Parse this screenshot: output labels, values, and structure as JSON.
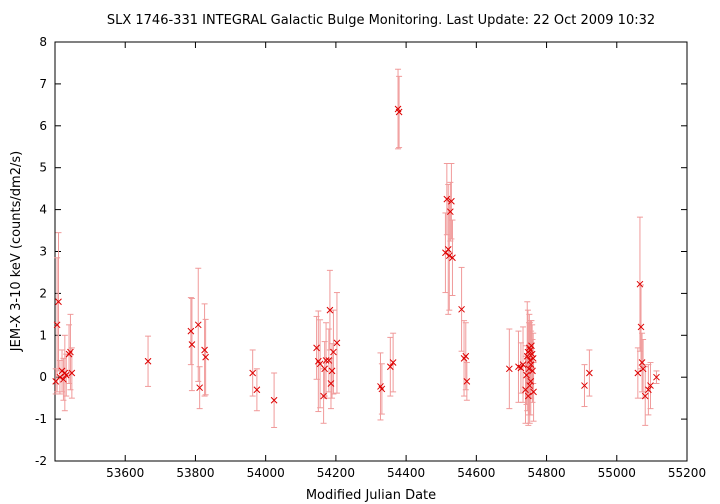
{
  "chart_data": {
    "type": "scatter",
    "title": "SLX 1746-331   INTEGRAL Galactic Bulge Monitoring.  Last Update: 22 Oct 2009 10:32",
    "xlabel": "Modified Julian Date",
    "ylabel": "JEM-X 3-10 keV (counts/dm2/s)",
    "xlim": [
      53400,
      55200
    ],
    "ylim": [
      -2,
      8
    ],
    "x_ticks": [
      53600,
      53800,
      54000,
      54200,
      54400,
      54600,
      54800,
      55000,
      55200
    ],
    "y_ticks": [
      -2,
      -1,
      0,
      1,
      2,
      3,
      4,
      5,
      6,
      7,
      8
    ],
    "x_tick_labels": [
      "53600",
      "53800",
      "54000",
      "54200",
      "54400",
      "54600",
      "54800",
      "55000",
      "55200"
    ],
    "y_tick_labels": [
      "-2",
      "-1",
      "0",
      "1",
      "2",
      "3",
      "4",
      "5",
      "6",
      "7",
      "8"
    ],
    "grid": false,
    "marker": "x",
    "point_color": "#dd0000",
    "errorbar_color": "#f09a9a",
    "series": [
      {
        "points": [
          {
            "x": 53402,
            "y": -0.1,
            "err": 0.3
          },
          {
            "x": 53406,
            "y": 1.25,
            "err": 1.6
          },
          {
            "x": 53410,
            "y": 1.8,
            "err": 1.65
          },
          {
            "x": 53414,
            "y": 0.0,
            "err": 0.4
          },
          {
            "x": 53420,
            "y": 0.15,
            "err": 0.5
          },
          {
            "x": 53424,
            "y": -0.05,
            "err": 0.5
          },
          {
            "x": 53428,
            "y": 0.1,
            "err": 0.9
          },
          {
            "x": 53432,
            "y": 0.05,
            "err": 0.5
          },
          {
            "x": 53440,
            "y": 0.55,
            "err": 0.7
          },
          {
            "x": 53444,
            "y": 0.6,
            "err": 0.9
          },
          {
            "x": 53448,
            "y": 0.1,
            "err": 0.6
          },
          {
            "x": 53665,
            "y": 0.38,
            "err": 0.6
          },
          {
            "x": 53787,
            "y": 1.1,
            "err": 0.8
          },
          {
            "x": 53790,
            "y": 0.78,
            "err": 1.1
          },
          {
            "x": 53808,
            "y": 1.25,
            "err": 1.35
          },
          {
            "x": 53812,
            "y": -0.25,
            "err": 0.5
          },
          {
            "x": 53826,
            "y": 0.65,
            "err": 1.1
          },
          {
            "x": 53829,
            "y": 0.48,
            "err": 0.9
          },
          {
            "x": 53963,
            "y": 0.1,
            "err": 0.55
          },
          {
            "x": 53975,
            "y": -0.3,
            "err": 0.5
          },
          {
            "x": 54024,
            "y": -0.55,
            "err": 0.65
          },
          {
            "x": 54145,
            "y": 0.7,
            "err": 0.75
          },
          {
            "x": 54150,
            "y": 0.38,
            "err": 1.2
          },
          {
            "x": 54155,
            "y": 0.32,
            "err": 1.05
          },
          {
            "x": 54165,
            "y": -0.45,
            "err": 0.65
          },
          {
            "x": 54168,
            "y": 0.2,
            "err": 0.65
          },
          {
            "x": 54172,
            "y": 0.4,
            "err": 0.9
          },
          {
            "x": 54180,
            "y": 0.4,
            "err": 0.75
          },
          {
            "x": 54183,
            "y": 1.6,
            "err": 0.95
          },
          {
            "x": 54186,
            "y": -0.15,
            "err": 0.6
          },
          {
            "x": 54189,
            "y": 0.15,
            "err": 0.65
          },
          {
            "x": 54193,
            "y": 0.6,
            "err": 1.0
          },
          {
            "x": 54203,
            "y": 0.82,
            "err": 1.2
          },
          {
            "x": 54327,
            "y": -0.22,
            "err": 0.8
          },
          {
            "x": 54331,
            "y": -0.28,
            "err": 0.6
          },
          {
            "x": 54355,
            "y": 0.25,
            "err": 0.7
          },
          {
            "x": 54363,
            "y": 0.35,
            "err": 0.7
          },
          {
            "x": 54377,
            "y": 6.4,
            "err": 0.95
          },
          {
            "x": 54380,
            "y": 6.33,
            "err": 0.85
          },
          {
            "x": 54512,
            "y": 2.97,
            "err": 0.95
          },
          {
            "x": 54516,
            "y": 4.25,
            "err": 0.85
          },
          {
            "x": 54520,
            "y": 3.05,
            "err": 1.55
          },
          {
            "x": 54523,
            "y": 2.9,
            "err": 1.3
          },
          {
            "x": 54526,
            "y": 3.95,
            "err": 0.7
          },
          {
            "x": 54529,
            "y": 4.2,
            "err": 0.9
          },
          {
            "x": 54532,
            "y": 2.85,
            "err": 0.9
          },
          {
            "x": 54558,
            "y": 1.62,
            "err": 1.0
          },
          {
            "x": 54565,
            "y": 0.45,
            "err": 0.9
          },
          {
            "x": 54570,
            "y": 0.5,
            "err": 0.8
          },
          {
            "x": 54573,
            "y": -0.1,
            "err": 0.45
          },
          {
            "x": 54694,
            "y": 0.2,
            "err": 0.95
          },
          {
            "x": 54720,
            "y": 0.25,
            "err": 0.85
          },
          {
            "x": 54727,
            "y": 0.22,
            "err": 0.6
          },
          {
            "x": 54733,
            "y": 0.3,
            "err": 0.9
          },
          {
            "x": 54740,
            "y": -0.3,
            "err": 0.8
          },
          {
            "x": 54743,
            "y": 0.05,
            "err": 0.7
          },
          {
            "x": 54745,
            "y": 0.5,
            "err": 1.3
          },
          {
            "x": 54747,
            "y": 0.6,
            "err": 1.0
          },
          {
            "x": 54748,
            "y": -0.45,
            "err": 0.7
          },
          {
            "x": 54750,
            "y": 0.2,
            "err": 1.1
          },
          {
            "x": 54751,
            "y": 0.7,
            "err": 0.8
          },
          {
            "x": 54752,
            "y": -0.2,
            "err": 0.9
          },
          {
            "x": 54753,
            "y": 0.4,
            "err": 0.9
          },
          {
            "x": 54754,
            "y": 0.65,
            "err": 0.7
          },
          {
            "x": 54755,
            "y": -0.1,
            "err": 0.8
          },
          {
            "x": 54756,
            "y": 0.3,
            "err": 0.8
          },
          {
            "x": 54757,
            "y": 0.75,
            "err": 0.6
          },
          {
            "x": 54759,
            "y": 0.55,
            "err": 0.7
          },
          {
            "x": 54760,
            "y": 0.15,
            "err": 0.75
          },
          {
            "x": 54762,
            "y": 0.45,
            "err": 0.6
          },
          {
            "x": 54763,
            "y": -0.35,
            "err": 0.7
          },
          {
            "x": 54908,
            "y": -0.2,
            "err": 0.5
          },
          {
            "x": 54922,
            "y": 0.1,
            "err": 0.55
          },
          {
            "x": 55060,
            "y": 0.1,
            "err": 0.6
          },
          {
            "x": 55066,
            "y": 2.22,
            "err": 1.6
          },
          {
            "x": 55069,
            "y": 1.2,
            "err": 1.0
          },
          {
            "x": 55072,
            "y": 0.35,
            "err": 0.7
          },
          {
            "x": 55075,
            "y": 0.2,
            "err": 0.7
          },
          {
            "x": 55081,
            "y": -0.45,
            "err": 0.7
          },
          {
            "x": 55090,
            "y": -0.3,
            "err": 0.6
          },
          {
            "x": 55096,
            "y": -0.2,
            "err": 0.55
          },
          {
            "x": 55113,
            "y": 0.0,
            "err": 0.15
          }
        ]
      }
    ]
  }
}
